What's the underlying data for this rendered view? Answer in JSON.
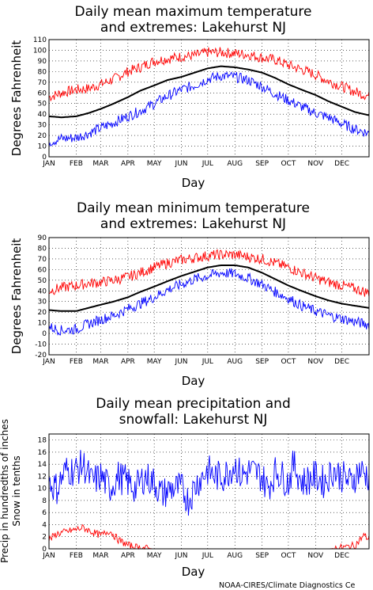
{
  "credit": "NOAA-CIRES/Climate Diagnostics Ce",
  "colors": {
    "mean": "#000000",
    "high": "#ff0000",
    "low": "#0000ff",
    "grid": "#000000"
  },
  "chart_data": [
    {
      "type": "line",
      "title_lines": [
        "Daily mean maximum temperature",
        "and extremes: Lakehurst NJ"
      ],
      "xlabel": "Day",
      "ylabel_lines": [
        "Degrees Fahrenheit"
      ],
      "x_ticklabels": [
        "JAN",
        "FEB",
        "MAR",
        "APR",
        "MAY",
        "JUN",
        "JUL",
        "AUG",
        "SEP",
        "OCT",
        "NOV",
        "DEC"
      ],
      "month_start_days": [
        1,
        32,
        60,
        91,
        121,
        152,
        182,
        213,
        244,
        274,
        305,
        335
      ],
      "xlim": [
        1,
        366
      ],
      "ylim": [
        0,
        110
      ],
      "yticks": [
        0,
        10,
        20,
        30,
        40,
        50,
        60,
        70,
        80,
        90,
        100,
        110
      ],
      "grid": "dotted",
      "series": [
        {
          "role": "high",
          "color": "#ff0000",
          "x": [
            1,
            15,
            32,
            46,
            60,
            75,
            91,
            105,
            121,
            136,
            152,
            167,
            182,
            197,
            213,
            228,
            244,
            259,
            274,
            289,
            305,
            320,
            335,
            350,
            366
          ],
          "values": [
            56,
            60,
            63,
            64,
            68,
            73,
            80,
            84,
            90,
            92,
            94,
            95,
            98,
            98,
            97,
            96,
            93,
            91,
            86,
            82,
            77,
            71,
            66,
            61,
            57
          ]
        },
        {
          "role": "mean",
          "color": "#000000",
          "x": [
            1,
            15,
            32,
            46,
            60,
            75,
            91,
            105,
            121,
            136,
            152,
            167,
            182,
            197,
            213,
            228,
            244,
            259,
            274,
            289,
            305,
            320,
            335,
            350,
            366
          ],
          "values": [
            38,
            37,
            38,
            41,
            45,
            50,
            56,
            62,
            67,
            72,
            75,
            79,
            83,
            85,
            84,
            82,
            79,
            74,
            68,
            63,
            58,
            52,
            47,
            42,
            39
          ]
        },
        {
          "role": "low",
          "color": "#0000ff",
          "x": [
            1,
            15,
            32,
            46,
            60,
            75,
            91,
            105,
            121,
            136,
            152,
            167,
            182,
            197,
            213,
            228,
            244,
            259,
            274,
            289,
            305,
            320,
            335,
            350,
            366
          ],
          "values": [
            14,
            17,
            18,
            22,
            27,
            32,
            38,
            43,
            50,
            57,
            63,
            67,
            73,
            76,
            75,
            72,
            66,
            59,
            53,
            47,
            41,
            37,
            31,
            26,
            22
          ]
        }
      ]
    },
    {
      "type": "line",
      "title_lines": [
        "Daily mean minimum temperature",
        "and extremes: Lakehurst NJ"
      ],
      "xlabel": "Day",
      "ylabel_lines": [
        "Degrees Fahrenheit"
      ],
      "x_ticklabels": [
        "JAN",
        "FEB",
        "MAR",
        "APR",
        "MAY",
        "JUN",
        "JUL",
        "AUG",
        "SEP",
        "OCT",
        "NOV",
        "DEC"
      ],
      "month_start_days": [
        1,
        32,
        60,
        91,
        121,
        152,
        182,
        213,
        244,
        274,
        305,
        335
      ],
      "xlim": [
        1,
        366
      ],
      "ylim": [
        -20,
        90
      ],
      "yticks": [
        -20,
        -10,
        0,
        10,
        20,
        30,
        40,
        50,
        60,
        70,
        80,
        90
      ],
      "grid": "dotted",
      "series": [
        {
          "role": "high",
          "color": "#ff0000",
          "x": [
            1,
            15,
            32,
            46,
            60,
            75,
            91,
            105,
            121,
            136,
            152,
            167,
            182,
            197,
            213,
            228,
            244,
            259,
            274,
            289,
            305,
            320,
            335,
            350,
            366
          ],
          "values": [
            40,
            43,
            45,
            47,
            48,
            50,
            53,
            57,
            62,
            66,
            69,
            71,
            73,
            74,
            74,
            72,
            70,
            66,
            62,
            57,
            52,
            48,
            45,
            42,
            38
          ]
        },
        {
          "role": "mean",
          "color": "#000000",
          "x": [
            1,
            15,
            32,
            46,
            60,
            75,
            91,
            105,
            121,
            136,
            152,
            167,
            182,
            197,
            213,
            228,
            244,
            259,
            274,
            289,
            305,
            320,
            335,
            350,
            366
          ],
          "values": [
            22,
            21,
            21,
            24,
            27,
            30,
            34,
            39,
            44,
            49,
            54,
            58,
            62,
            64,
            64,
            62,
            57,
            51,
            45,
            40,
            35,
            31,
            28,
            26,
            24
          ]
        },
        {
          "role": "low",
          "color": "#0000ff",
          "x": [
            1,
            15,
            32,
            46,
            60,
            75,
            91,
            105,
            121,
            136,
            152,
            167,
            182,
            197,
            213,
            228,
            244,
            259,
            274,
            289,
            305,
            320,
            335,
            350,
            366
          ],
          "values": [
            6,
            3,
            4,
            9,
            13,
            17,
            23,
            28,
            34,
            41,
            46,
            51,
            54,
            57,
            56,
            52,
            46,
            39,
            33,
            26,
            21,
            17,
            14,
            11,
            8
          ]
        }
      ]
    },
    {
      "type": "line",
      "title_lines": [
        "Daily mean precipitation and",
        "snowfall: Lakehurst NJ"
      ],
      "xlabel": "Day",
      "ylabel_lines": [
        "Precip in hundredths of inches",
        "Snow in tenths"
      ],
      "x_ticklabels": [
        "JAN",
        "FEB",
        "MAR",
        "APR",
        "MAY",
        "JUN",
        "JUL",
        "AUG",
        "SEP",
        "OCT",
        "NOV",
        "DEC"
      ],
      "month_start_days": [
        1,
        32,
        60,
        91,
        121,
        152,
        182,
        213,
        244,
        274,
        305,
        335
      ],
      "xlim": [
        1,
        366
      ],
      "ylim": [
        0,
        19
      ],
      "yticks": [
        0,
        2,
        4,
        6,
        8,
        10,
        12,
        14,
        16,
        18
      ],
      "grid": "dotted",
      "series": [
        {
          "role": "precip",
          "color": "#0000ff",
          "x": [
            1,
            10,
            20,
            32,
            40,
            50,
            60,
            70,
            80,
            91,
            100,
            110,
            121,
            130,
            140,
            152,
            160,
            170,
            182,
            190,
            200,
            213,
            220,
            230,
            244,
            250,
            260,
            274,
            280,
            290,
            305,
            315,
            325,
            335,
            345,
            355,
            366
          ],
          "values": [
            11,
            10,
            13,
            13,
            14,
            11,
            12,
            10,
            12,
            11,
            10,
            12,
            11,
            9,
            10,
            10,
            8,
            11,
            13,
            12,
            12,
            14,
            12,
            13,
            12,
            10,
            13,
            11,
            14,
            11,
            12,
            11,
            13,
            12,
            11,
            13,
            12
          ]
        },
        {
          "role": "snow",
          "color": "#ff0000",
          "x": [
            1,
            10,
            20,
            32,
            40,
            50,
            60,
            70,
            80,
            91,
            100,
            110,
            121,
            150,
            200,
            250,
            300,
            320,
            330,
            340,
            350,
            355,
            360,
            366
          ],
          "values": [
            1.5,
            2.5,
            2.8,
            3.2,
            3.5,
            2.8,
            2.2,
            3.0,
            1.5,
            0.6,
            0.3,
            0.1,
            0,
            0,
            0,
            0,
            0,
            0,
            0.1,
            0.3,
            0.6,
            1.4,
            2.2,
            1.6
          ]
        }
      ]
    }
  ]
}
